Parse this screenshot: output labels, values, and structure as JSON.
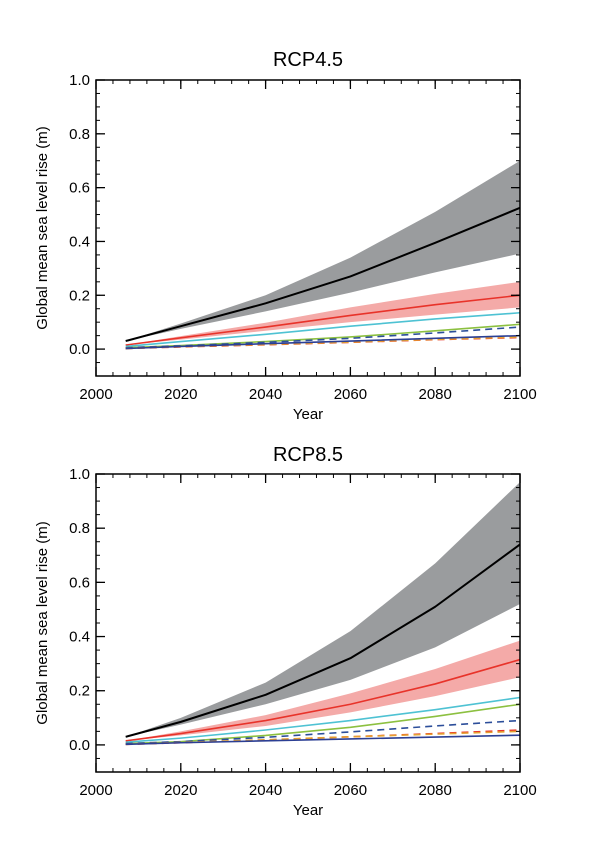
{
  "chart_data": [
    {
      "type": "line",
      "title": "RCP4.5",
      "xlabel": "Year",
      "ylabel": "Global mean sea level rise (m)",
      "xlim": [
        2000,
        2100
      ],
      "ylim": [
        -0.1,
        1.0
      ],
      "xticks": [
        2000,
        2020,
        2040,
        2060,
        2080,
        2100
      ],
      "xtick_labels": [
        "2000",
        "2020",
        "2040",
        "2060",
        "2080",
        "2100"
      ],
      "yticks": [
        0.0,
        0.2,
        0.4,
        0.6,
        0.8,
        1.0
      ],
      "ytick_labels": [
        "0.0",
        "0.2",
        "0.4",
        "0.6",
        "0.8",
        "1.0"
      ],
      "x": [
        2007,
        2020,
        2040,
        2060,
        2080,
        2100
      ],
      "bands": [
        {
          "color": "#9a9c9e",
          "lower": [
            0.03,
            0.075,
            0.14,
            0.21,
            0.285,
            0.355
          ],
          "upper": [
            0.03,
            0.095,
            0.2,
            0.34,
            0.51,
            0.7
          ]
        },
        {
          "color": "#f4aaa8",
          "lower": [
            0.015,
            0.035,
            0.068,
            0.1,
            0.128,
            0.155
          ],
          "upper": [
            0.015,
            0.048,
            0.098,
            0.155,
            0.205,
            0.25
          ]
        }
      ],
      "series": [
        {
          "color": "#000000",
          "dash": "solid",
          "values": [
            0.03,
            0.085,
            0.17,
            0.27,
            0.395,
            0.525
          ]
        },
        {
          "color": "#e8332a",
          "dash": "solid",
          "values": [
            0.015,
            0.042,
            0.082,
            0.125,
            0.165,
            0.2
          ]
        },
        {
          "color": "#4ec2d3",
          "dash": "solid",
          "values": [
            0.01,
            0.028,
            0.055,
            0.085,
            0.112,
            0.135
          ]
        },
        {
          "color": "#8cc040",
          "dash": "solid",
          "values": [
            0.005,
            0.013,
            0.028,
            0.045,
            0.068,
            0.092
          ]
        },
        {
          "color": "#2c4e9a",
          "dash": "dashed",
          "values": [
            0.005,
            0.012,
            0.025,
            0.04,
            0.06,
            0.082
          ]
        },
        {
          "color": "#e8332a",
          "dash": "dashed",
          "values": [
            0.002,
            0.008,
            0.016,
            0.025,
            0.035,
            0.043
          ]
        },
        {
          "color": "#e6a030",
          "dash": "dashed",
          "values": [
            0.002,
            0.009,
            0.017,
            0.026,
            0.036,
            0.045
          ]
        },
        {
          "color": "#2c3f94",
          "dash": "solid",
          "values": [
            0.002,
            0.01,
            0.02,
            0.03,
            0.04,
            0.05
          ]
        }
      ]
    },
    {
      "type": "line",
      "title": "RCP8.5",
      "xlabel": "Year",
      "ylabel": "Global mean sea level rise (m)",
      "xlim": [
        2000,
        2100
      ],
      "ylim": [
        -0.1,
        1.0
      ],
      "xticks": [
        2000,
        2020,
        2040,
        2060,
        2080,
        2100
      ],
      "xtick_labels": [
        "2000",
        "2020",
        "2040",
        "2060",
        "2080",
        "2100"
      ],
      "yticks": [
        0.0,
        0.2,
        0.4,
        0.6,
        0.8,
        1.0
      ],
      "ytick_labels": [
        "0.0",
        "0.2",
        "0.4",
        "0.6",
        "0.8",
        "1.0"
      ],
      "x": [
        2007,
        2020,
        2040,
        2060,
        2080,
        2100
      ],
      "bands": [
        {
          "color": "#9a9c9e",
          "lower": [
            0.03,
            0.075,
            0.15,
            0.24,
            0.36,
            0.52
          ],
          "upper": [
            0.03,
            0.1,
            0.23,
            0.42,
            0.67,
            0.97
          ]
        },
        {
          "color": "#f4aaa8",
          "lower": [
            0.015,
            0.035,
            0.07,
            0.12,
            0.18,
            0.25
          ],
          "upper": [
            0.015,
            0.05,
            0.11,
            0.19,
            0.28,
            0.385
          ]
        }
      ],
      "series": [
        {
          "color": "#000000",
          "dash": "solid",
          "values": [
            0.03,
            0.085,
            0.185,
            0.32,
            0.51,
            0.74
          ]
        },
        {
          "color": "#e8332a",
          "dash": "solid",
          "values": [
            0.015,
            0.042,
            0.09,
            0.15,
            0.225,
            0.315
          ]
        },
        {
          "color": "#4ec2d3",
          "dash": "solid",
          "values": [
            0.01,
            0.025,
            0.055,
            0.09,
            0.13,
            0.175
          ]
        },
        {
          "color": "#8cc040",
          "dash": "solid",
          "values": [
            0.005,
            0.012,
            0.035,
            0.065,
            0.105,
            0.15
          ]
        },
        {
          "color": "#2c4e9a",
          "dash": "dashed",
          "values": [
            0.005,
            0.012,
            0.028,
            0.048,
            0.07,
            0.09
          ]
        },
        {
          "color": "#e8332a",
          "dash": "dashed",
          "values": [
            0.002,
            0.008,
            0.018,
            0.03,
            0.042,
            0.055
          ]
        },
        {
          "color": "#e6a030",
          "dash": "dashed",
          "values": [
            0.002,
            0.009,
            0.019,
            0.03,
            0.04,
            0.05
          ]
        },
        {
          "color": "#2c3f94",
          "dash": "solid",
          "values": [
            0.002,
            0.008,
            0.015,
            0.022,
            0.029,
            0.036
          ]
        }
      ]
    }
  ]
}
